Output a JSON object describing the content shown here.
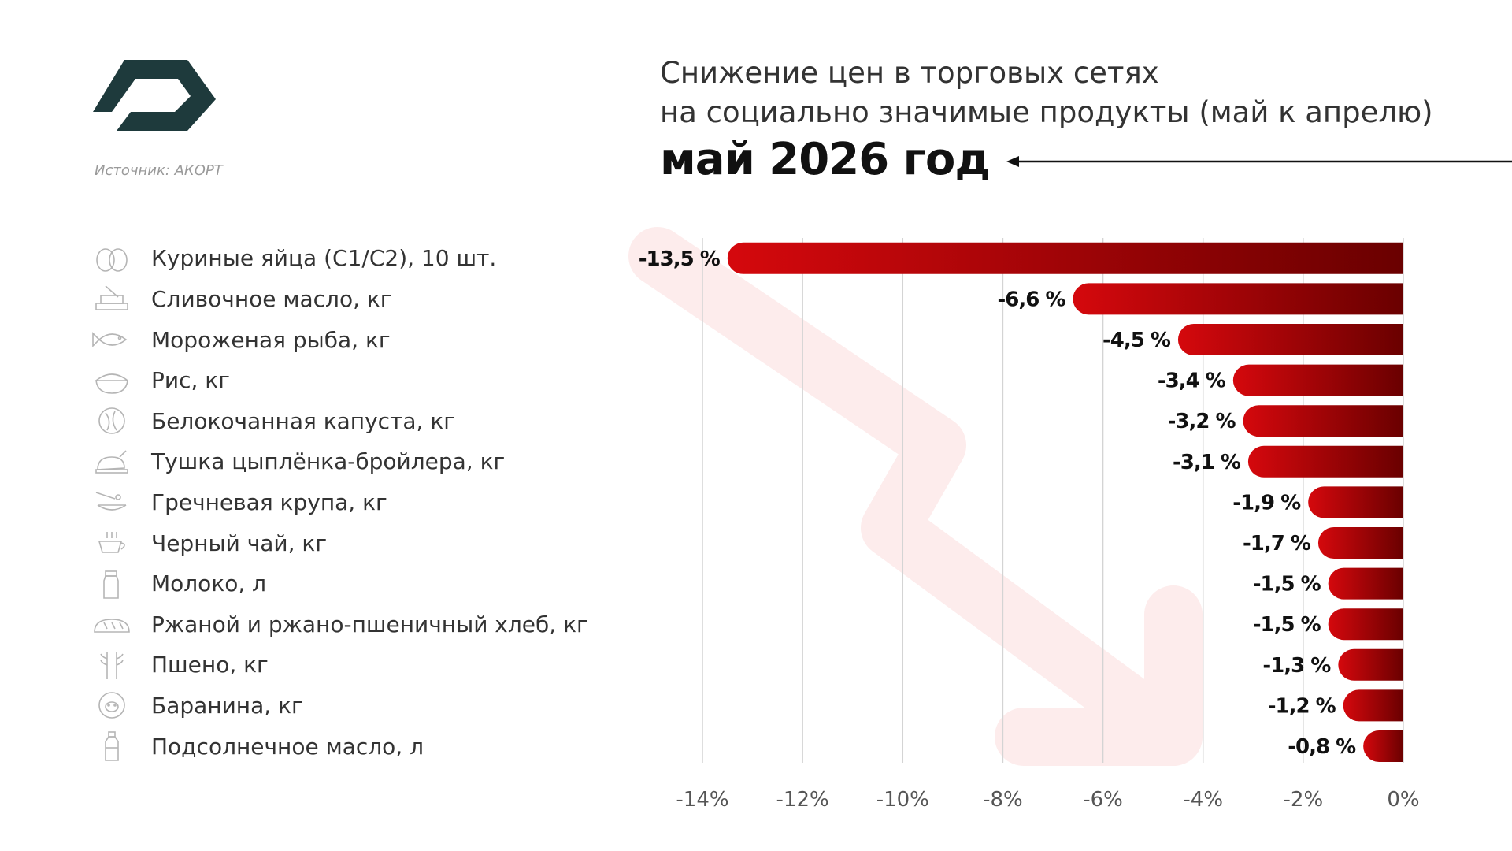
{
  "source": "Источник: АКОРТ",
  "title_lines": [
    "Снижение цен в торговых сетях",
    "на социально значимые продукты (май к апрелю)"
  ],
  "period": "май 2026 год",
  "colors": {
    "bar_start": "#d5080d",
    "bar_end": "#6a0000",
    "logo": "#1e3a3c",
    "grid": "#d4d4d4",
    "watermark_arrow": "#fdecec"
  },
  "chart_data": {
    "type": "bar",
    "orientation": "horizontal",
    "title": "Снижение цен в торговых сетях на социально значимые продукты (май к апрелю)",
    "categories": [
      "Куриные яйца (С1/С2), 10 шт.",
      "Сливочное масло, кг",
      "Мороженая рыба, кг",
      "Рис, кг",
      "Белокочанная капуста, кг",
      "Тушка цыплёнка-бройлера, кг",
      "Гречневая крупа, кг",
      "Черный чай, кг",
      "Молоко, л",
      "Ржаной и ржано-пшеничный хлеб, кг",
      "Пшено, кг",
      "Баранина, кг",
      "Подсолнечное масло, л"
    ],
    "icons": [
      "eggs-icon",
      "butter-icon",
      "fish-icon",
      "rice-bowl-icon",
      "cabbage-icon",
      "chicken-icon",
      "buckwheat-icon",
      "tea-cup-icon",
      "milk-bottle-icon",
      "bread-icon",
      "millet-icon",
      "lamb-icon",
      "oil-bottle-icon"
    ],
    "values": [
      -13.5,
      -6.6,
      -4.5,
      -3.4,
      -3.2,
      -3.1,
      -1.9,
      -1.7,
      -1.5,
      -1.5,
      -1.3,
      -1.2,
      -0.8
    ],
    "value_labels": [
      "-13,5 %",
      "-6,6 %",
      "-4,5 %",
      "-3,4 %",
      "-3,2 %",
      "-3,1 %",
      "-1,9 %",
      "-1,7 %",
      "-1,5 %",
      "-1,5 %",
      "-1,3 %",
      "-1,2 %",
      "-0,8 %"
    ],
    "xlim": [
      -14,
      0
    ],
    "xticks": [
      -14,
      -12,
      -10,
      -8,
      -6,
      -4,
      -2,
      0
    ],
    "xtick_labels": [
      "-14%",
      "-12%",
      "-10%",
      "-8%",
      "-6%",
      "-4%",
      "-2%",
      "0%"
    ],
    "grid": true
  }
}
